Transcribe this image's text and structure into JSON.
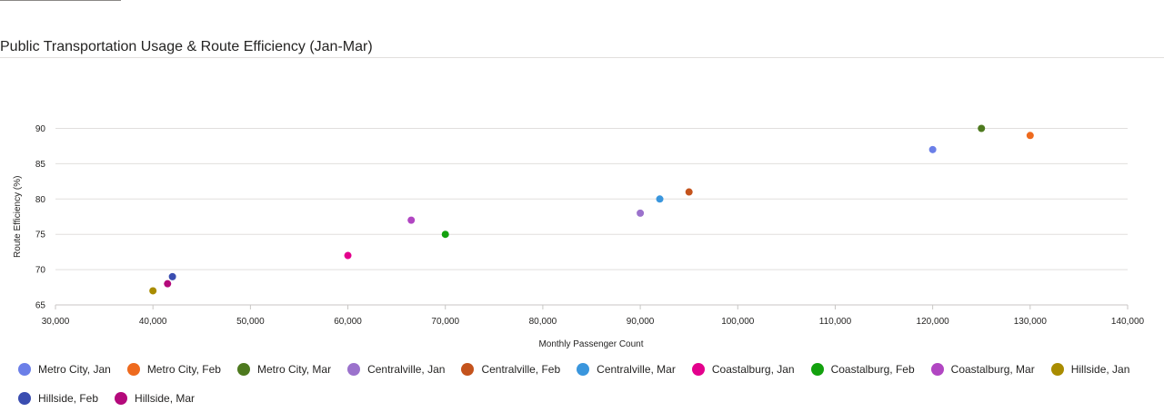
{
  "chart_data": {
    "type": "scatter",
    "title": "Public Transportation Usage & Route Efficiency (Jan-Mar)",
    "xlabel": "Monthly Passenger Count",
    "ylabel": "Route Efficiency (%)",
    "xlim": [
      30000,
      140000
    ],
    "ylim": [
      65,
      90
    ],
    "x_ticks": [
      "30,000",
      "40,000",
      "50,000",
      "60,000",
      "70,000",
      "80,000",
      "90,000",
      "100,000",
      "110,000",
      "120,000",
      "130,000",
      "140,000"
    ],
    "y_ticks": [
      "65",
      "70",
      "75",
      "80",
      "85",
      "90"
    ],
    "grid": true,
    "legend_position": "bottom",
    "series": [
      {
        "name": "Metro City, Jan",
        "color": "#6b7fe8",
        "x": 120000,
        "y": 87
      },
      {
        "name": "Metro City, Feb",
        "color": "#ee6a1e",
        "x": 130000,
        "y": 89
      },
      {
        "name": "Metro City, Mar",
        "color": "#4e7a1f",
        "x": 125000,
        "y": 90
      },
      {
        "name": "Centralville, Jan",
        "color": "#9b72cc",
        "x": 90000,
        "y": 78
      },
      {
        "name": "Centralville, Feb",
        "color": "#c4531c",
        "x": 95000,
        "y": 81
      },
      {
        "name": "Centralville, Mar",
        "color": "#3a96dd",
        "x": 92000,
        "y": 80
      },
      {
        "name": "Coastalburg, Jan",
        "color": "#e3008c",
        "x": 60000,
        "y": 72
      },
      {
        "name": "Coastalburg, Feb",
        "color": "#13a10e",
        "x": 70000,
        "y": 75
      },
      {
        "name": "Coastalburg, Mar",
        "color": "#b146c2",
        "x": 66500,
        "y": 77
      },
      {
        "name": "Hillside, Jan",
        "color": "#a98c00",
        "x": 40000,
        "y": 67
      },
      {
        "name": "Hillside, Feb",
        "color": "#3a4db0",
        "x": 42000,
        "y": 69
      },
      {
        "name": "Hillside, Mar",
        "color": "#b4097b",
        "x": 41500,
        "y": 68
      }
    ]
  }
}
